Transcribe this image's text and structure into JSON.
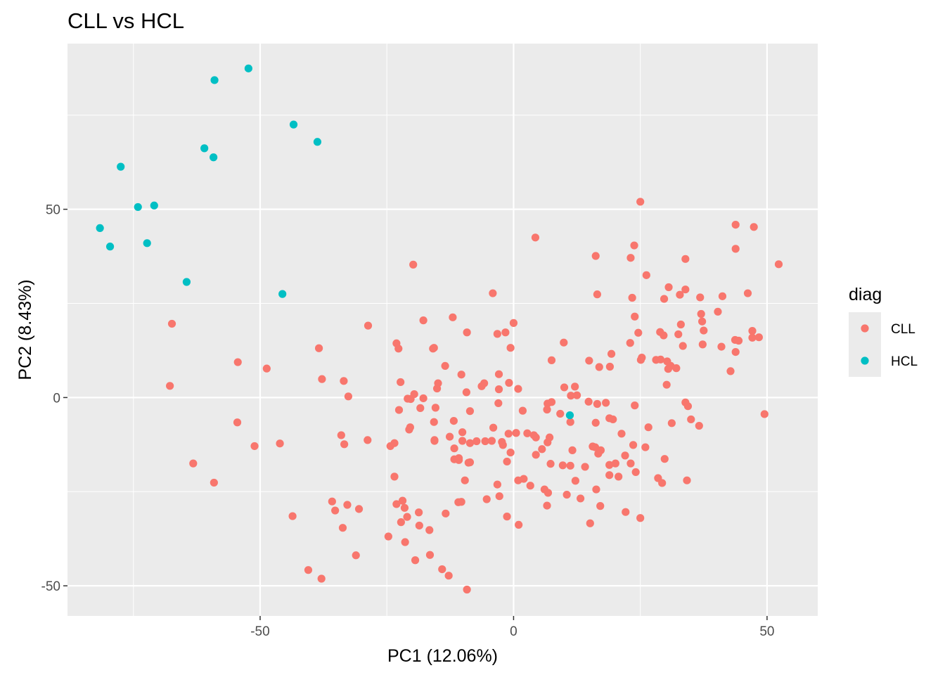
{
  "chart_data": {
    "type": "scatter",
    "title": "CLL vs HCL",
    "xlabel": "PC1 (12.06%)",
    "ylabel": "PC2 (8.43%)",
    "xlim": [
      -88,
      60
    ],
    "ylim": [
      -58,
      94
    ],
    "x_ticks": [
      -50,
      0,
      50
    ],
    "x_tick_labels": [
      "-50",
      "0",
      "50"
    ],
    "y_ticks": [
      -50,
      0,
      50
    ],
    "y_tick_labels": [
      "-50",
      "0",
      "50"
    ],
    "grid": true,
    "legend": {
      "title": "diag",
      "position": "right"
    },
    "series": [
      {
        "name": "CLL",
        "color": "#F8766D",
        "points": [
          [
            25.0,
            52.0
          ],
          [
            4.3,
            42.5
          ],
          [
            43.8,
            45.9
          ],
          [
            47.4,
            45.3
          ],
          [
            23.8,
            40.4
          ],
          [
            43.8,
            39.5
          ],
          [
            16.2,
            37.6
          ],
          [
            23.1,
            37.1
          ],
          [
            33.9,
            36.8
          ],
          [
            52.3,
            35.4
          ],
          [
            -19.8,
            35.3
          ],
          [
            26.2,
            32.5
          ],
          [
            30.6,
            29.3
          ],
          [
            33.9,
            28.7
          ],
          [
            -4.1,
            27.7
          ],
          [
            16.5,
            27.4
          ],
          [
            46.2,
            27.7
          ],
          [
            32.8,
            27.3
          ],
          [
            36.8,
            26.6
          ],
          [
            41.2,
            26.9
          ],
          [
            23.4,
            26.5
          ],
          [
            29.7,
            26.2
          ],
          [
            40.3,
            22.8
          ],
          [
            -12.0,
            21.3
          ],
          [
            37.0,
            22.2
          ],
          [
            23.9,
            21.5
          ],
          [
            -17.8,
            20.5
          ],
          [
            37.2,
            20.2
          ],
          [
            0.0,
            19.8
          ],
          [
            -28.7,
            19.1
          ],
          [
            -67.4,
            19.6
          ],
          [
            33.0,
            19.4
          ],
          [
            -9.2,
            17.3
          ],
          [
            -3.2,
            16.9
          ],
          [
            -1.6,
            17.3
          ],
          [
            24.6,
            17.2
          ],
          [
            28.9,
            17.4
          ],
          [
            29.6,
            16.5
          ],
          [
            32.5,
            16.8
          ],
          [
            37.5,
            17.8
          ],
          [
            47.1,
            17.7
          ],
          [
            43.7,
            15.3
          ],
          [
            44.4,
            15.1
          ],
          [
            47.1,
            15.9
          ],
          [
            48.4,
            16.0
          ],
          [
            -23.1,
            14.4
          ],
          [
            9.9,
            14.6
          ],
          [
            23.0,
            14.5
          ],
          [
            33.4,
            13.7
          ],
          [
            37.3,
            14.1
          ],
          [
            41.0,
            13.5
          ],
          [
            -22.7,
            13.0
          ],
          [
            -15.9,
            13.0
          ],
          [
            -15.7,
            13.2
          ],
          [
            -0.6,
            13.2
          ],
          [
            19.3,
            11.6
          ],
          [
            43.8,
            12.1
          ],
          [
            -38.4,
            13.1
          ],
          [
            25.3,
            10.6
          ],
          [
            28.1,
            10.0
          ],
          [
            29.0,
            10.1
          ],
          [
            30.3,
            9.6
          ],
          [
            7.5,
            9.9
          ],
          [
            14.9,
            9.8
          ],
          [
            25.1,
            10.0
          ],
          [
            31.0,
            8.4
          ],
          [
            -54.4,
            9.4
          ],
          [
            -13.5,
            8.4
          ],
          [
            -48.7,
            7.7
          ],
          [
            16.9,
            8.1
          ],
          [
            19.0,
            8.2
          ],
          [
            30.5,
            7.6
          ],
          [
            32.1,
            7.8
          ],
          [
            42.8,
            7.0
          ],
          [
            -10.3,
            6.1
          ],
          [
            -2.9,
            6.2
          ],
          [
            -37.8,
            4.9
          ],
          [
            -33.5,
            4.4
          ],
          [
            -22.3,
            4.1
          ],
          [
            -5.8,
            3.8
          ],
          [
            -0.9,
            3.9
          ],
          [
            -6.3,
            3.0
          ],
          [
            -14.9,
            3.8
          ],
          [
            30.2,
            3.4
          ],
          [
            -67.8,
            3.1
          ],
          [
            10.0,
            2.7
          ],
          [
            12.1,
            2.9
          ],
          [
            -15.1,
            2.4
          ],
          [
            -2.9,
            2.2
          ],
          [
            0.9,
            2.3
          ],
          [
            -19.6,
            0.9
          ],
          [
            -9.3,
            1.4
          ],
          [
            -17.8,
            -0.2
          ],
          [
            -32.6,
            0.3
          ],
          [
            -20.9,
            -0.3
          ],
          [
            -20.3,
            -0.4
          ],
          [
            11.3,
            0.5
          ],
          [
            12.5,
            0.6
          ],
          [
            6.7,
            -1.6
          ],
          [
            7.5,
            -1.2
          ],
          [
            14.8,
            -1.1
          ],
          [
            16.5,
            -1.7
          ],
          [
            18.2,
            -1.4
          ],
          [
            23.9,
            -2.1
          ],
          [
            33.9,
            -1.3
          ],
          [
            -3.0,
            -1.5
          ],
          [
            -22.6,
            -3.3
          ],
          [
            -18.4,
            -2.8
          ],
          [
            -15.4,
            -2.7
          ],
          [
            -8.6,
            -3.6
          ],
          [
            1.8,
            -3.5
          ],
          [
            6.6,
            -3.2
          ],
          [
            9.2,
            -4.3
          ],
          [
            34.4,
            -2.3
          ],
          [
            -15.7,
            -6.5
          ],
          [
            -11.8,
            -6.2
          ],
          [
            -4.0,
            -8.0
          ],
          [
            11.2,
            -6.5
          ],
          [
            16.2,
            -6.7
          ],
          [
            18.9,
            -5.5
          ],
          [
            19.6,
            -5.8
          ],
          [
            26.6,
            -7.9
          ],
          [
            31.2,
            -6.8
          ],
          [
            35.0,
            -5.8
          ],
          [
            36.6,
            -7.5
          ],
          [
            -54.5,
            -6.6
          ],
          [
            -34.0,
            -10.0
          ],
          [
            -20.6,
            -8.5
          ],
          [
            -20.4,
            -7.9
          ],
          [
            -10.1,
            -9.2
          ],
          [
            -1.0,
            -9.6
          ],
          [
            0.5,
            -9.4
          ],
          [
            2.7,
            -9.5
          ],
          [
            -33.4,
            -12.4
          ],
          [
            -28.8,
            -11.3
          ],
          [
            -46.1,
            -12.2
          ],
          [
            -24.3,
            -12.9
          ],
          [
            -23.5,
            -12.1
          ],
          [
            -12.6,
            -10.4
          ],
          [
            -10.1,
            -11.5
          ],
          [
            -8.6,
            -12.1
          ],
          [
            -7.3,
            -11.6
          ],
          [
            -5.6,
            -11.6
          ],
          [
            -4.3,
            -11.5
          ],
          [
            -2.3,
            -11.8
          ],
          [
            4.0,
            -10.0
          ],
          [
            4.4,
            -10.6
          ],
          [
            7.1,
            -10.6
          ],
          [
            6.7,
            -11.9
          ],
          [
            21.3,
            -9.6
          ],
          [
            -15.6,
            -11.5
          ],
          [
            -15.6,
            -11.3
          ],
          [
            -51.1,
            -12.9
          ],
          [
            -11.7,
            -13.5
          ],
          [
            -2.1,
            -12.6
          ],
          [
            11.6,
            -14.0
          ],
          [
            15.6,
            -13.0
          ],
          [
            16.1,
            -13.2
          ],
          [
            16.7,
            -14.9
          ],
          [
            17.2,
            -14.0
          ],
          [
            22.0,
            -15.4
          ],
          [
            23.6,
            -12.6
          ],
          [
            26.0,
            -13.2
          ],
          [
            -63.2,
            -17.5
          ],
          [
            -11.7,
            -16.4
          ],
          [
            -10.8,
            -16.6
          ],
          [
            -10.8,
            -16.1
          ],
          [
            -8.9,
            -17.3
          ],
          [
            -8.6,
            -17.2
          ],
          [
            -1.3,
            -17.0
          ],
          [
            -0.6,
            -14.6
          ],
          [
            4.4,
            -15.2
          ],
          [
            5.6,
            -13.7
          ],
          [
            7.3,
            -17.6
          ],
          [
            9.7,
            -18.0
          ],
          [
            11.2,
            -18.1
          ],
          [
            14.1,
            -18.4
          ],
          [
            18.9,
            -17.9
          ],
          [
            20.1,
            -17.5
          ],
          [
            23.1,
            -17.5
          ],
          [
            29.8,
            -16.3
          ],
          [
            -59.1,
            -22.6
          ],
          [
            -23.5,
            -21.0
          ],
          [
            -9.6,
            -22.0
          ],
          [
            -3.2,
            -23.1
          ],
          [
            0.9,
            -22.0
          ],
          [
            2.0,
            -21.6
          ],
          [
            3.3,
            -23.4
          ],
          [
            6.1,
            -24.4
          ],
          [
            6.8,
            -25.3
          ],
          [
            12.2,
            -22.1
          ],
          [
            16.3,
            -24.4
          ],
          [
            18.9,
            -20.6
          ],
          [
            20.7,
            -21.0
          ],
          [
            24.1,
            -19.8
          ],
          [
            28.5,
            -21.4
          ],
          [
            29.3,
            -22.7
          ],
          [
            34.2,
            -22.0
          ],
          [
            -23.1,
            -28.3
          ],
          [
            -21.5,
            -29.3
          ],
          [
            -21.9,
            -27.4
          ],
          [
            -18.7,
            -30.5
          ],
          [
            -13.4,
            -30.8
          ],
          [
            -10.9,
            -27.8
          ],
          [
            -10.3,
            -27.7
          ],
          [
            -5.3,
            -27.0
          ],
          [
            -2.8,
            -26.2
          ],
          [
            6.6,
            -28.7
          ],
          [
            10.5,
            -25.8
          ],
          [
            13.2,
            -26.8
          ],
          [
            17.1,
            -28.8
          ],
          [
            -43.6,
            -31.5
          ],
          [
            -35.8,
            -27.6
          ],
          [
            -35.2,
            -30.0
          ],
          [
            -32.8,
            -28.5
          ],
          [
            -30.5,
            -29.6
          ],
          [
            -22.2,
            -33.1
          ],
          [
            -21.0,
            -31.7
          ],
          [
            -18.6,
            -34.0
          ],
          [
            -16.6,
            -35.2
          ],
          [
            -1.3,
            -31.6
          ],
          [
            1.0,
            -33.8
          ],
          [
            15.1,
            -33.4
          ],
          [
            22.1,
            -30.4
          ],
          [
            25.0,
            -32.0
          ],
          [
            -33.7,
            -34.6
          ],
          [
            -24.7,
            -36.9
          ],
          [
            -21.4,
            -38.4
          ],
          [
            -19.4,
            -43.2
          ],
          [
            -16.5,
            -41.8
          ],
          [
            -31.1,
            -41.9
          ],
          [
            -40.5,
            -45.8
          ],
          [
            -37.9,
            -48.1
          ],
          [
            -14.1,
            -45.6
          ],
          [
            -12.8,
            -47.3
          ],
          [
            -9.2,
            -51.0
          ],
          [
            49.5,
            -4.4
          ]
        ]
      },
      {
        "name": "HCL",
        "color": "#00BFC4",
        "points": [
          [
            -52.3,
            87.4
          ],
          [
            -59.0,
            84.3
          ],
          [
            -43.4,
            72.5
          ],
          [
            -38.7,
            67.9
          ],
          [
            -61.0,
            66.2
          ],
          [
            -59.2,
            63.8
          ],
          [
            -77.5,
            61.3
          ],
          [
            -70.9,
            51.0
          ],
          [
            -74.1,
            50.6
          ],
          [
            -81.6,
            45.0
          ],
          [
            -79.6,
            40.1
          ],
          [
            -72.3,
            41.0
          ],
          [
            -64.5,
            30.7
          ],
          [
            -45.6,
            27.5
          ],
          [
            11.1,
            -4.7
          ]
        ]
      }
    ]
  }
}
